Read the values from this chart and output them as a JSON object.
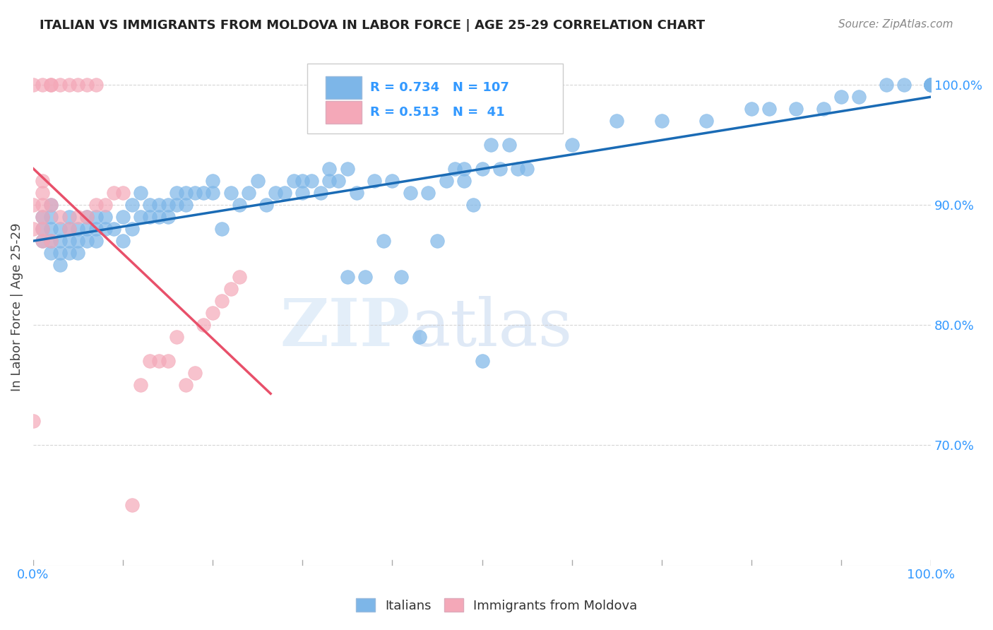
{
  "title": "ITALIAN VS IMMIGRANTS FROM MOLDOVA IN LABOR FORCE | AGE 25-29 CORRELATION CHART",
  "source": "Source: ZipAtlas.com",
  "xlabel": "",
  "ylabel": "In Labor Force | Age 25-29",
  "xlim": [
    0.0,
    1.0
  ],
  "ylim": [
    0.6,
    1.03
  ],
  "yticks": [
    0.7,
    0.8,
    0.9,
    1.0
  ],
  "ytick_labels": [
    "70.0%",
    "80.0%",
    "90.0%",
    "100.0%"
  ],
  "xticks": [
    0.0,
    0.1,
    0.2,
    0.3,
    0.4,
    0.5,
    0.6,
    0.7,
    0.8,
    0.9,
    1.0
  ],
  "xtick_labels": [
    "0.0%",
    "",
    "",
    "",
    "",
    "",
    "",
    "",
    "",
    "",
    "100.0%"
  ],
  "blue_R": 0.734,
  "blue_N": 107,
  "pink_R": 0.513,
  "pink_N": 41,
  "blue_color": "#7DB6E8",
  "pink_color": "#F4A8B8",
  "blue_line_color": "#1A6BB5",
  "pink_line_color": "#E8506A",
  "axis_color": "#3399FF",
  "watermark_zip": "ZIP",
  "watermark_atlas": "atlas",
  "blue_scatter_x": [
    0.01,
    0.01,
    0.01,
    0.02,
    0.02,
    0.02,
    0.02,
    0.02,
    0.03,
    0.03,
    0.03,
    0.03,
    0.04,
    0.04,
    0.04,
    0.04,
    0.05,
    0.05,
    0.05,
    0.06,
    0.06,
    0.06,
    0.07,
    0.07,
    0.07,
    0.08,
    0.08,
    0.09,
    0.1,
    0.1,
    0.11,
    0.11,
    0.12,
    0.12,
    0.13,
    0.13,
    0.14,
    0.14,
    0.15,
    0.15,
    0.16,
    0.16,
    0.17,
    0.17,
    0.18,
    0.19,
    0.2,
    0.2,
    0.21,
    0.22,
    0.23,
    0.24,
    0.25,
    0.26,
    0.27,
    0.28,
    0.29,
    0.3,
    0.3,
    0.31,
    0.32,
    0.33,
    0.33,
    0.34,
    0.35,
    0.35,
    0.36,
    0.37,
    0.38,
    0.39,
    0.4,
    0.41,
    0.42,
    0.43,
    0.44,
    0.45,
    0.46,
    0.47,
    0.48,
    0.48,
    0.49,
    0.5,
    0.5,
    0.51,
    0.52,
    0.53,
    0.54,
    0.55,
    0.6,
    0.65,
    0.7,
    0.75,
    0.8,
    0.82,
    0.85,
    0.88,
    0.9,
    0.92,
    0.95,
    0.97,
    1.0,
    1.0,
    1.0,
    1.0,
    1.0,
    1.0,
    1.0
  ],
  "blue_scatter_y": [
    0.87,
    0.88,
    0.89,
    0.86,
    0.87,
    0.88,
    0.89,
    0.9,
    0.85,
    0.86,
    0.87,
    0.88,
    0.86,
    0.87,
    0.88,
    0.89,
    0.86,
    0.87,
    0.88,
    0.87,
    0.88,
    0.89,
    0.87,
    0.88,
    0.89,
    0.88,
    0.89,
    0.88,
    0.87,
    0.89,
    0.88,
    0.9,
    0.89,
    0.91,
    0.89,
    0.9,
    0.89,
    0.9,
    0.89,
    0.9,
    0.9,
    0.91,
    0.9,
    0.91,
    0.91,
    0.91,
    0.91,
    0.92,
    0.88,
    0.91,
    0.9,
    0.91,
    0.92,
    0.9,
    0.91,
    0.91,
    0.92,
    0.91,
    0.92,
    0.92,
    0.91,
    0.92,
    0.93,
    0.92,
    0.93,
    0.84,
    0.91,
    0.84,
    0.92,
    0.87,
    0.92,
    0.84,
    0.91,
    0.79,
    0.91,
    0.87,
    0.92,
    0.93,
    0.92,
    0.93,
    0.9,
    0.77,
    0.93,
    0.95,
    0.93,
    0.95,
    0.93,
    0.93,
    0.95,
    0.97,
    0.97,
    0.97,
    0.98,
    0.98,
    0.98,
    0.98,
    0.99,
    0.99,
    1.0,
    1.0,
    1.0,
    1.0,
    1.0,
    1.0,
    1.0,
    1.0,
    1.0
  ],
  "pink_scatter_x": [
    0.0,
    0.0,
    0.0,
    0.0,
    0.01,
    0.01,
    0.01,
    0.01,
    0.01,
    0.01,
    0.01,
    0.02,
    0.02,
    0.02,
    0.02,
    0.03,
    0.03,
    0.04,
    0.04,
    0.05,
    0.05,
    0.06,
    0.06,
    0.07,
    0.07,
    0.08,
    0.09,
    0.1,
    0.11,
    0.12,
    0.13,
    0.14,
    0.15,
    0.16,
    0.17,
    0.18,
    0.19,
    0.2,
    0.21,
    0.22,
    0.23
  ],
  "pink_scatter_y": [
    0.72,
    0.88,
    0.9,
    1.0,
    0.87,
    0.88,
    0.89,
    0.9,
    0.91,
    0.92,
    1.0,
    0.87,
    0.9,
    1.0,
    1.0,
    0.89,
    1.0,
    0.88,
    1.0,
    0.89,
    1.0,
    0.89,
    1.0,
    0.9,
    1.0,
    0.9,
    0.91,
    0.91,
    0.65,
    0.75,
    0.77,
    0.77,
    0.77,
    0.79,
    0.75,
    0.76,
    0.8,
    0.81,
    0.82,
    0.83,
    0.84
  ]
}
